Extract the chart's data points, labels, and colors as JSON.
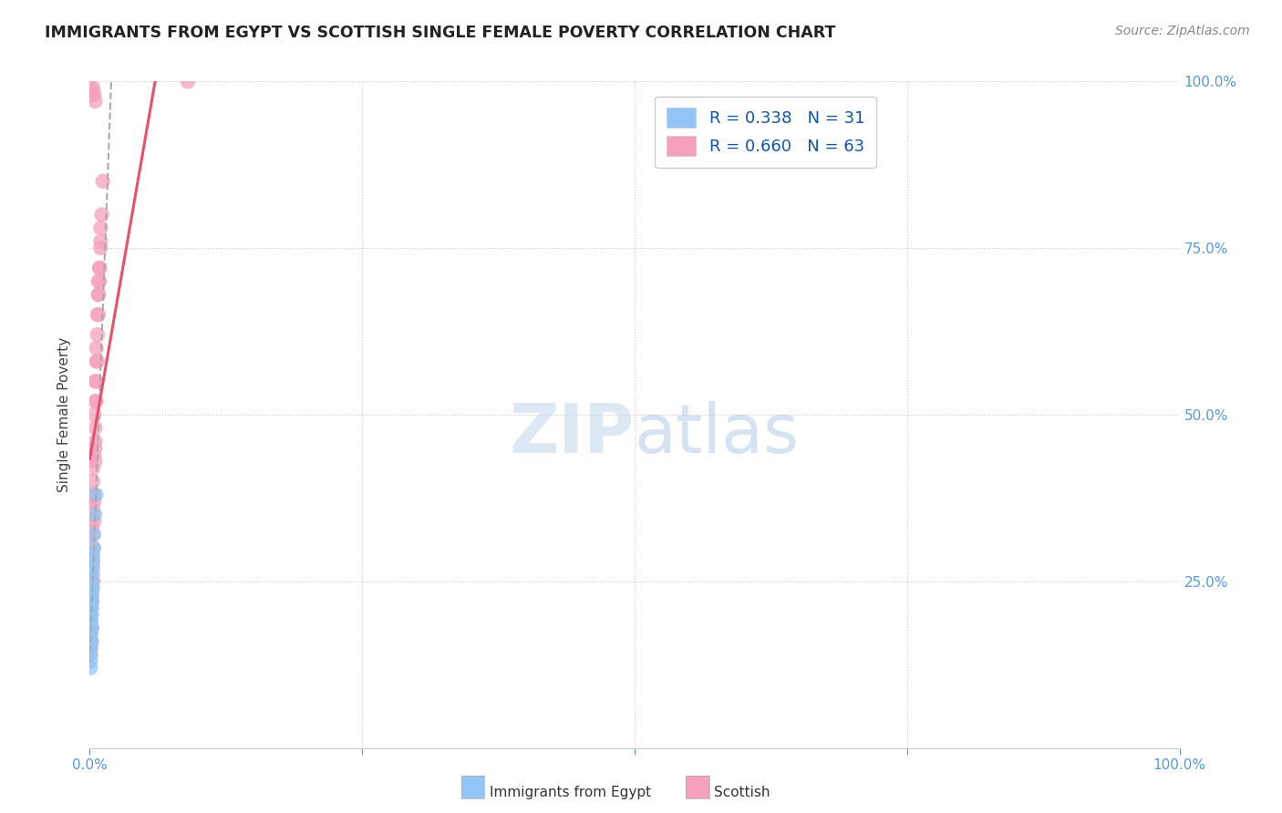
{
  "title": "IMMIGRANTS FROM EGYPT VS SCOTTISH SINGLE FEMALE POVERTY CORRELATION CHART",
  "source": "Source: ZipAtlas.com",
  "xlabel_egypt": "Immigrants from Egypt",
  "xlabel_scottish": "Scottish",
  "ylabel": "Single Female Poverty",
  "r_blue": 0.338,
  "n_blue": 31,
  "r_pink": 0.66,
  "n_pink": 63,
  "blue_color": "#92C5F5",
  "pink_color": "#F5A0BC",
  "pink_line_color": "#E8506A",
  "gray_line_color": "#AAAAAA",
  "blue_line_color": "#6699DD",
  "watermark_zip_color": "#C8DCF0",
  "watermark_atlas_color": "#90B8E0",
  "xlim": [
    0.0,
    1.0
  ],
  "ylim": [
    0.0,
    1.0
  ],
  "grid_color": "#E0C0CC",
  "title_color": "#222222",
  "source_color": "#888888",
  "axis_label_color": "#5599DD",
  "ylabel_color": "#444444",
  "blue_x": [
    0.001,
    0.002,
    0.001,
    0.003,
    0.001,
    0.002,
    0.001,
    0.003,
    0.002,
    0.001,
    0.002,
    0.001,
    0.003,
    0.001,
    0.002,
    0.004,
    0.001,
    0.002,
    0.001,
    0.003,
    0.002,
    0.001,
    0.005,
    0.002,
    0.001,
    0.003,
    0.002,
    0.001,
    0.004,
    0.002,
    0.006
  ],
  "blue_y": [
    0.21,
    0.23,
    0.19,
    0.26,
    0.17,
    0.2,
    0.15,
    0.24,
    0.22,
    0.18,
    0.25,
    0.16,
    0.28,
    0.14,
    0.22,
    0.3,
    0.13,
    0.21,
    0.19,
    0.27,
    0.24,
    0.2,
    0.35,
    0.22,
    0.12,
    0.29,
    0.18,
    0.23,
    0.32,
    0.16,
    0.38
  ],
  "pink_x": [
    0.001,
    0.002,
    0.001,
    0.003,
    0.002,
    0.001,
    0.002,
    0.003,
    0.001,
    0.002,
    0.003,
    0.001,
    0.002,
    0.004,
    0.001,
    0.003,
    0.002,
    0.001,
    0.005,
    0.002,
    0.003,
    0.002,
    0.001,
    0.004,
    0.003,
    0.002,
    0.005,
    0.003,
    0.006,
    0.004,
    0.005,
    0.007,
    0.006,
    0.008,
    0.005,
    0.009,
    0.007,
    0.006,
    0.01,
    0.008,
    0.003,
    0.004,
    0.002,
    0.005,
    0.003,
    0.006,
    0.004,
    0.007,
    0.005,
    0.008,
    0.009,
    0.01,
    0.011,
    0.012,
    0.009,
    0.01,
    0.008,
    0.09,
    0.001,
    0.002,
    0.003,
    0.004,
    0.005
  ],
  "pink_y": [
    0.22,
    0.25,
    0.2,
    0.3,
    0.18,
    0.15,
    0.24,
    0.32,
    0.17,
    0.28,
    0.35,
    0.19,
    0.26,
    0.38,
    0.16,
    0.4,
    0.29,
    0.21,
    0.45,
    0.33,
    0.42,
    0.27,
    0.14,
    0.5,
    0.36,
    0.23,
    0.55,
    0.38,
    0.6,
    0.44,
    0.52,
    0.65,
    0.58,
    0.7,
    0.48,
    0.72,
    0.62,
    0.55,
    0.75,
    0.68,
    0.25,
    0.34,
    0.22,
    0.43,
    0.28,
    0.52,
    0.37,
    0.58,
    0.46,
    0.65,
    0.72,
    0.78,
    0.8,
    0.85,
    0.7,
    0.76,
    0.68,
    1.0,
    0.99,
    0.98,
    0.99,
    0.98,
    0.97
  ]
}
